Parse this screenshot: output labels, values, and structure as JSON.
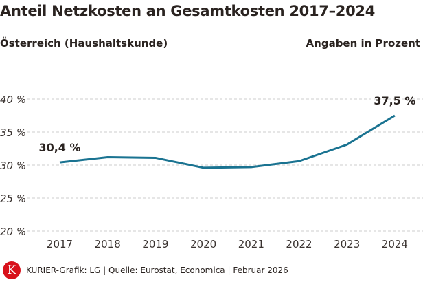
{
  "title": "Anteil Netzkosten an Gesamtkosten 2017–2024",
  "subtitle_left": "Österreich (Haushaltskunde)",
  "subtitle_right": "Angaben in Prozent",
  "footer": "KURIER-Grafik: LG | Quelle: Eurostat, Economica | Februar 2026",
  "logo_text": "K",
  "colors": {
    "line": "#1a7391",
    "logo": "#d8111b",
    "grid": "#cccccc"
  },
  "chart_data": {
    "type": "line",
    "categories": [
      "2017",
      "2018",
      "2019",
      "2020",
      "2021",
      "2022",
      "2023",
      "2024"
    ],
    "values": [
      30.4,
      31.2,
      31.1,
      29.6,
      29.7,
      30.6,
      33.1,
      37.5
    ],
    "ylim": [
      20,
      40
    ],
    "yticks": [
      20,
      25,
      30,
      35,
      40
    ],
    "ytick_labels": [
      "20 %",
      "25 %",
      "30 %",
      "35 %",
      "40 %"
    ],
    "grid": true,
    "annotations": [
      {
        "category": "2017",
        "label": "30,4 %"
      },
      {
        "category": "2024",
        "label": "37,5 %"
      }
    ]
  }
}
